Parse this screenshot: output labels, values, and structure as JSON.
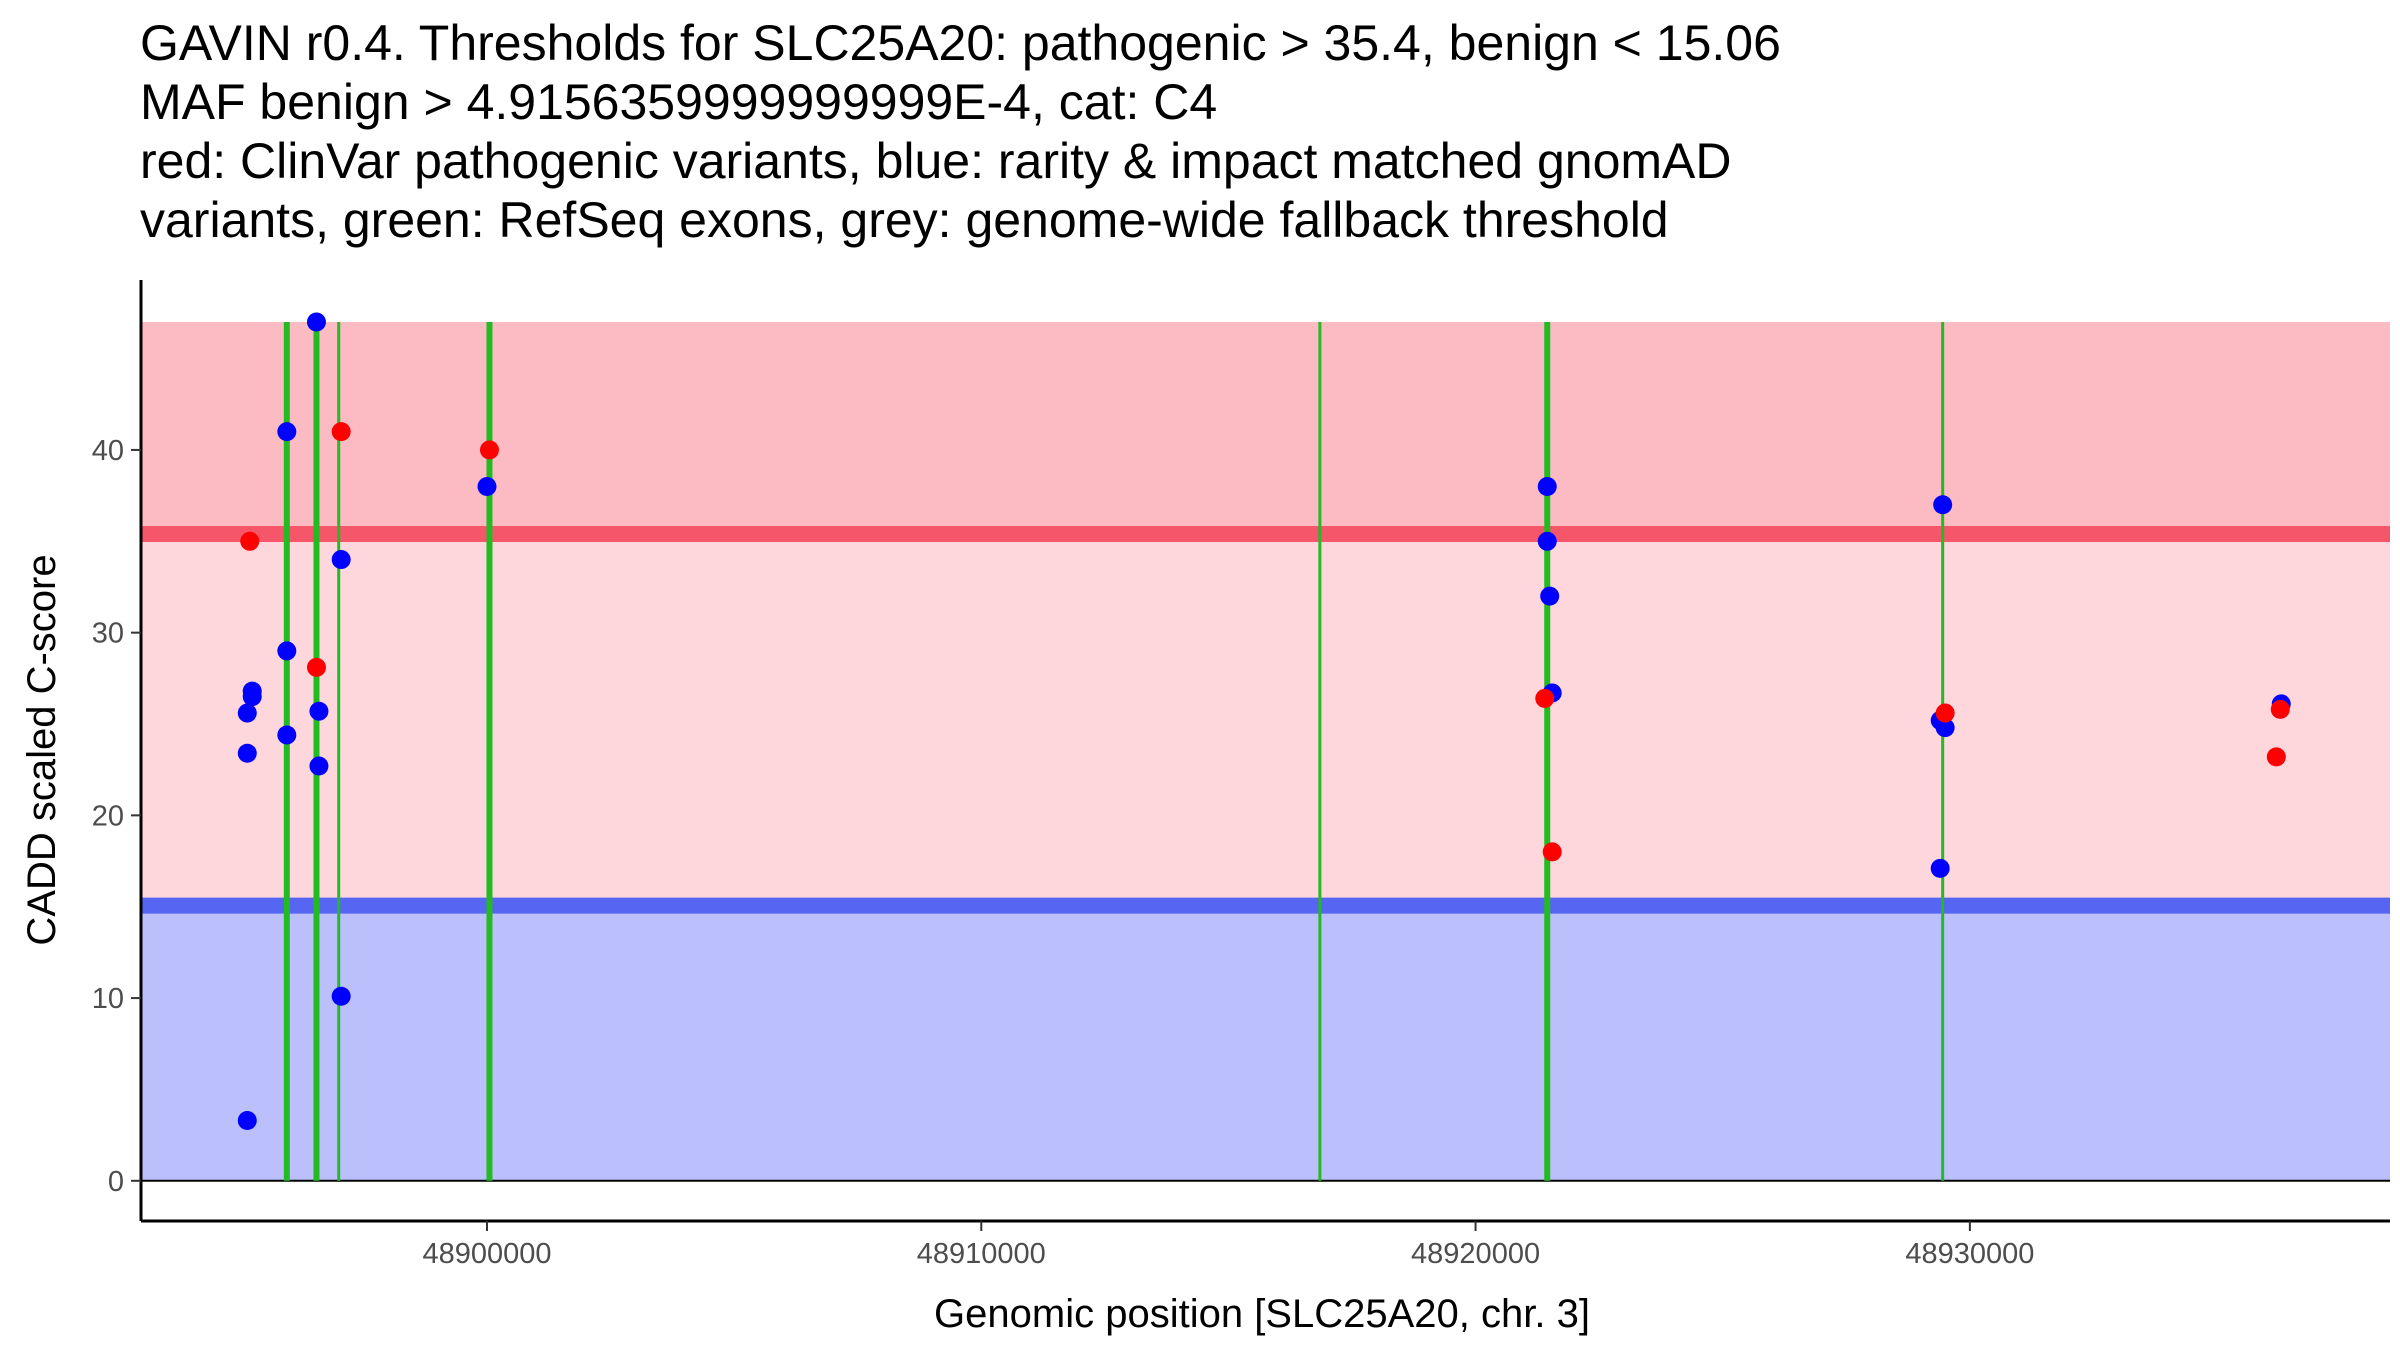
{
  "chart_data": {
    "type": "scatter",
    "title_lines": [
      "GAVIN r0.4. Thresholds for SLC25A20: pathogenic > 35.4, benign < 15.06",
      "MAF benign > 4.9156359999999999E-4, cat: C4",
      "red: ClinVar pathogenic variants, blue: rarity & impact matched gnomAD",
      "variants, green: RefSeq exons, grey: genome-wide fallback threshold"
    ],
    "xlabel": "Genomic position [SLC25A20, chr. 3]",
    "ylabel": "CADD scaled C-score",
    "xlim": [
      48893000,
      48938500
    ],
    "ylim": [
      -2.2,
      49.3
    ],
    "x_ticks": [
      {
        "value": 48900000,
        "label": "48900000"
      },
      {
        "value": 48910000,
        "label": "48910000"
      },
      {
        "value": 48920000,
        "label": "48920000"
      },
      {
        "value": 48930000,
        "label": "48930000"
      }
    ],
    "y_ticks": [
      {
        "value": 0,
        "label": "0"
      },
      {
        "value": 10,
        "label": "10"
      },
      {
        "value": 20,
        "label": "20"
      },
      {
        "value": 30,
        "label": "30"
      },
      {
        "value": 40,
        "label": "40"
      }
    ],
    "thresholds": {
      "pathogenic": 35.4,
      "benign": 15.06
    },
    "score_range": [
      0,
      47
    ],
    "colors": {
      "pathogenic_region": "#fcbbc3",
      "middle_region": "#fed7dc",
      "benign_region": "#bbc0fd",
      "pathogenic_line": "#f5566a",
      "benign_line": "#5665f2",
      "exon": "#22bb22",
      "clinvar_point": "#ff0000",
      "gnomad_point": "#0000ff",
      "axis": "#000000"
    },
    "exon_lines": [
      {
        "x": 48895950,
        "thick": true
      },
      {
        "x": 48896550,
        "thick": true
      },
      {
        "x": 48897000,
        "thick": false
      },
      {
        "x": 48900050,
        "thick": true
      },
      {
        "x": 48916850,
        "thick": false
      },
      {
        "x": 48921450,
        "thick": true
      },
      {
        "x": 48929450,
        "thick": false
      }
    ],
    "series": [
      {
        "name": "ClinVar pathogenic variants",
        "color": "#ff0000",
        "points": [
          {
            "x": 48895200,
            "y": 35.0
          },
          {
            "x": 48896550,
            "y": 28.1
          },
          {
            "x": 48897050,
            "y": 41.0
          },
          {
            "x": 48900050,
            "y": 40.0
          },
          {
            "x": 48921400,
            "y": 26.4
          },
          {
            "x": 48921550,
            "y": 18.0
          },
          {
            "x": 48929500,
            "y": 25.6
          },
          {
            "x": 48936200,
            "y": 23.2
          },
          {
            "x": 48936280,
            "y": 25.8
          }
        ]
      },
      {
        "name": "gnomAD variants",
        "color": "#0000ff",
        "points": [
          {
            "x": 48895150,
            "y": 3.3
          },
          {
            "x": 48895150,
            "y": 23.4
          },
          {
            "x": 48895150,
            "y": 25.6
          },
          {
            "x": 48895250,
            "y": 26.5
          },
          {
            "x": 48895250,
            "y": 26.8
          },
          {
            "x": 48895950,
            "y": 29.0
          },
          {
            "x": 48895950,
            "y": 24.4
          },
          {
            "x": 48895950,
            "y": 41.0
          },
          {
            "x": 48896550,
            "y": 47.0
          },
          {
            "x": 48896600,
            "y": 25.7
          },
          {
            "x": 48896600,
            "y": 22.7
          },
          {
            "x": 48897050,
            "y": 34.0
          },
          {
            "x": 48897050,
            "y": 10.1
          },
          {
            "x": 48900000,
            "y": 38.0
          },
          {
            "x": 48921450,
            "y": 38.0
          },
          {
            "x": 48921450,
            "y": 35.0
          },
          {
            "x": 48921500,
            "y": 32.0
          },
          {
            "x": 48921550,
            "y": 26.7
          },
          {
            "x": 48929450,
            "y": 37.0
          },
          {
            "x": 48929400,
            "y": 25.2
          },
          {
            "x": 48929500,
            "y": 24.8
          },
          {
            "x": 48929400,
            "y": 17.1
          },
          {
            "x": 48936300,
            "y": 26.1
          }
        ]
      }
    ]
  }
}
